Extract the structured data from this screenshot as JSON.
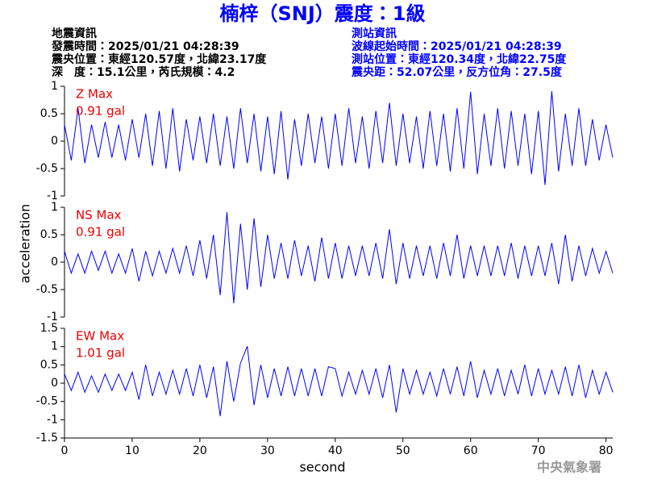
{
  "title": "楠梓（SNJ）震度：1級",
  "event_info": [
    "地震資訊",
    "發震時間：2025/01/21 04:28:39",
    "震央位置：東經120.57度，北緯23.17度",
    "深　度：15.1公里，芮氏規模：4.2"
  ],
  "station_info": [
    "測站資訊",
    "波線起始時間：2025/01/21 04:28:39",
    "測站位置：東經120.34度，北緯22.75度",
    "震央距：52.07公里，反方位角：27.5度"
  ],
  "y_label": "acceleration",
  "x_label": "second",
  "credit": "中央氣象署",
  "chart_data": [
    {
      "type": "line",
      "component": "Z Max",
      "max_text": "0.91 gal",
      "color": "#0000ff",
      "xlim": [
        0,
        81
      ],
      "ylim": [
        -1,
        1
      ],
      "yticks": [
        -1,
        -0.5,
        0,
        0.5,
        1
      ],
      "x": [
        0,
        1,
        2,
        3,
        4,
        5,
        6,
        7,
        8,
        9,
        10,
        11,
        12,
        13,
        14,
        15,
        16,
        17,
        18,
        19,
        20,
        21,
        22,
        23,
        24,
        25,
        26,
        27,
        28,
        29,
        30,
        31,
        32,
        33,
        34,
        35,
        36,
        37,
        38,
        39,
        40,
        41,
        42,
        43,
        44,
        45,
        46,
        47,
        48,
        49,
        50,
        51,
        52,
        53,
        54,
        55,
        56,
        57,
        58,
        59,
        60,
        61,
        62,
        63,
        64,
        65,
        66,
        67,
        68,
        69,
        70,
        71,
        72,
        73,
        74,
        75,
        76,
        77,
        78,
        79,
        80,
        81
      ],
      "values": [
        0.3,
        -0.35,
        0.6,
        -0.4,
        0.3,
        -0.3,
        0.35,
        -0.3,
        0.3,
        -0.35,
        0.4,
        -0.3,
        0.5,
        -0.45,
        0.55,
        -0.5,
        0.6,
        -0.55,
        0.4,
        -0.35,
        0.45,
        -0.4,
        0.5,
        -0.45,
        0.45,
        -0.5,
        0.6,
        -0.4,
        0.5,
        -0.55,
        0.45,
        -0.6,
        0.55,
        -0.7,
        0.4,
        -0.45,
        0.5,
        -0.4,
        0.45,
        -0.5,
        0.5,
        -0.45,
        0.6,
        -0.4,
        0.45,
        -0.5,
        0.55,
        -0.4,
        0.7,
        -0.45,
        0.5,
        -0.4,
        0.45,
        -0.5,
        0.55,
        -0.45,
        0.5,
        -0.55,
        0.6,
        -0.5,
        0.9,
        -0.6,
        0.5,
        -0.45,
        0.6,
        -0.5,
        0.55,
        -0.45,
        0.5,
        -0.6,
        0.55,
        -0.8,
        0.91,
        -0.55,
        0.5,
        -0.45,
        0.6,
        -0.45,
        0.4,
        -0.35,
        0.3,
        -0.3
      ]
    },
    {
      "type": "line",
      "component": "NS Max",
      "max_text": "0.91 gal",
      "color": "#0000ff",
      "xlim": [
        0,
        81
      ],
      "ylim": [
        -1,
        1
      ],
      "yticks": [
        -1,
        -0.5,
        0,
        0.5,
        1
      ],
      "x": [
        0,
        1,
        2,
        3,
        4,
        5,
        6,
        7,
        8,
        9,
        10,
        11,
        12,
        13,
        14,
        15,
        16,
        17,
        18,
        19,
        20,
        21,
        22,
        23,
        24,
        25,
        26,
        27,
        28,
        29,
        30,
        31,
        32,
        33,
        34,
        35,
        36,
        37,
        38,
        39,
        40,
        41,
        42,
        43,
        44,
        45,
        46,
        47,
        48,
        49,
        50,
        51,
        52,
        53,
        54,
        55,
        56,
        57,
        58,
        59,
        60,
        61,
        62,
        63,
        64,
        65,
        66,
        67,
        68,
        69,
        70,
        71,
        72,
        73,
        74,
        75,
        76,
        77,
        78,
        79,
        80,
        81
      ],
      "values": [
        0.2,
        -0.2,
        0.15,
        -0.2,
        0.2,
        -0.15,
        0.2,
        -0.2,
        0.15,
        -0.2,
        0.25,
        -0.35,
        0.2,
        -0.25,
        0.2,
        -0.2,
        0.25,
        -0.2,
        0.3,
        -0.25,
        0.4,
        -0.3,
        0.5,
        -0.6,
        0.91,
        -0.75,
        0.7,
        -0.5,
        0.8,
        -0.45,
        0.5,
        -0.3,
        0.35,
        -0.3,
        0.4,
        -0.25,
        0.3,
        -0.35,
        0.45,
        -0.3,
        0.35,
        -0.3,
        0.3,
        -0.25,
        0.3,
        -0.25,
        0.35,
        -0.3,
        0.6,
        -0.4,
        0.35,
        -0.3,
        0.3,
        -0.25,
        0.3,
        -0.3,
        0.35,
        -0.25,
        0.5,
        -0.3,
        0.3,
        -0.25,
        0.3,
        -0.25,
        0.3,
        -0.25,
        0.35,
        -0.3,
        0.3,
        -0.25,
        0.3,
        -0.25,
        0.35,
        -0.4,
        0.5,
        -0.35,
        0.3,
        -0.25,
        0.25,
        -0.2,
        0.2,
        -0.2
      ]
    },
    {
      "type": "line",
      "component": "EW Max",
      "max_text": "1.01 gal",
      "color": "#0000ff",
      "xlim": [
        0,
        81
      ],
      "xticks": [
        0,
        10,
        20,
        30,
        40,
        50,
        60,
        70,
        80
      ],
      "ylim": [
        -1.5,
        1.5
      ],
      "yticks": [
        -1.5,
        -1,
        -0.5,
        0,
        0.5,
        1,
        1.5
      ],
      "x": [
        0,
        1,
        2,
        3,
        4,
        5,
        6,
        7,
        8,
        9,
        10,
        11,
        12,
        13,
        14,
        15,
        16,
        17,
        18,
        19,
        20,
        21,
        22,
        23,
        24,
        25,
        26,
        27,
        28,
        29,
        30,
        31,
        32,
        33,
        34,
        35,
        36,
        37,
        38,
        39,
        40,
        41,
        42,
        43,
        44,
        45,
        46,
        47,
        48,
        49,
        50,
        51,
        52,
        53,
        54,
        55,
        56,
        57,
        58,
        59,
        60,
        61,
        62,
        63,
        64,
        65,
        66,
        67,
        68,
        69,
        70,
        71,
        72,
        73,
        74,
        75,
        76,
        77,
        78,
        79,
        80,
        81
      ],
      "values": [
        0.25,
        -0.2,
        0.3,
        -0.25,
        0.2,
        -0.25,
        0.25,
        -0.2,
        0.25,
        -0.2,
        0.3,
        -0.45,
        0.5,
        -0.35,
        0.3,
        -0.3,
        0.35,
        -0.3,
        0.4,
        -0.35,
        0.5,
        -0.4,
        0.45,
        -0.9,
        0.6,
        -0.5,
        0.55,
        1.01,
        -0.6,
        0.5,
        -0.4,
        0.4,
        -0.35,
        0.45,
        -0.35,
        0.4,
        -0.35,
        0.4,
        -0.35,
        0.45,
        0.4,
        -0.35,
        0.3,
        -0.3,
        0.35,
        -0.3,
        0.4,
        -0.4,
        0.5,
        -0.8,
        0.4,
        -0.3,
        0.35,
        -0.3,
        0.3,
        -0.35,
        0.4,
        -0.3,
        0.45,
        -0.35,
        0.6,
        -0.4,
        0.35,
        -0.3,
        0.4,
        -0.35,
        0.35,
        -0.3,
        0.5,
        -0.35,
        0.4,
        -0.3,
        0.35,
        -0.3,
        0.45,
        -0.35,
        0.5,
        -0.4,
        0.35,
        -0.3,
        0.3,
        -0.25
      ]
    }
  ]
}
